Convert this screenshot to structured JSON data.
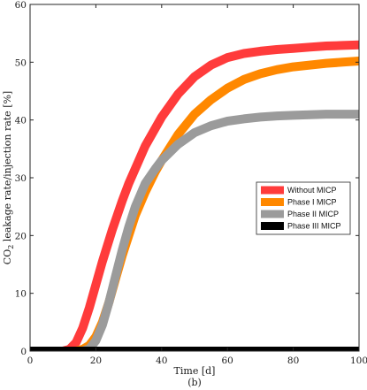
{
  "chart_data": {
    "type": "line",
    "ylabel_main": "CO",
    "ylabel_sub": "2",
    "ylabel_rest": " leakage rate/injection rate [%]",
    "xlabel": "Time [d]",
    "caption": "(b)",
    "xlim": [
      0,
      100
    ],
    "ylim": [
      0,
      60
    ],
    "xticks": [
      0,
      20,
      40,
      60,
      80,
      100
    ],
    "yticks": [
      0,
      10,
      20,
      30,
      40,
      50,
      60
    ],
    "grid": false,
    "legend_position": "center-right",
    "series": [
      {
        "name": "Without MICP",
        "color": "#ff3b3b",
        "x": [
          0,
          10,
          12,
          14,
          16,
          18,
          20,
          22,
          25,
          28,
          30,
          35,
          40,
          45,
          50,
          55,
          60,
          65,
          70,
          75,
          80,
          85,
          90,
          95,
          100
        ],
        "y": [
          0,
          0,
          0.3,
          1.5,
          4,
          7.5,
          11.5,
          15.5,
          21,
          26,
          29,
          35.5,
          40.5,
          44.5,
          47.5,
          49.5,
          50.8,
          51.5,
          51.9,
          52.2,
          52.4,
          52.6,
          52.8,
          52.9,
          53
        ]
      },
      {
        "name": "Phase I MICP",
        "color": "#ff8800",
        "x": [
          0,
          14,
          16,
          18,
          20,
          22,
          24,
          26,
          28,
          30,
          32,
          35,
          38,
          40,
          45,
          50,
          55,
          60,
          65,
          70,
          75,
          80,
          85,
          90,
          95,
          100
        ],
        "y": [
          0,
          0,
          0.3,
          1,
          2.5,
          5,
          8.5,
          12.5,
          16.5,
          20,
          23.5,
          27.5,
          31,
          33,
          37.5,
          41,
          43.5,
          45.5,
          47,
          48,
          48.7,
          49.2,
          49.5,
          49.8,
          50,
          50.2
        ]
      },
      {
        "name": "Phase II MICP",
        "color": "#9b9b9b",
        "x": [
          0,
          16,
          18,
          20,
          22,
          24,
          26,
          28,
          30,
          32,
          35,
          38,
          40,
          45,
          50,
          55,
          60,
          65,
          70,
          75,
          80,
          85,
          90,
          95,
          100
        ],
        "y": [
          0,
          0,
          0.4,
          1.8,
          4.5,
          8.5,
          13,
          17.5,
          21.5,
          25,
          29,
          31.5,
          33,
          35.8,
          37.8,
          39,
          39.8,
          40.2,
          40.5,
          40.7,
          40.8,
          40.9,
          41,
          41,
          41
        ]
      },
      {
        "name": "Phase III MICP",
        "color": "#000000",
        "x": [
          0,
          100
        ],
        "y": [
          0,
          0
        ]
      }
    ]
  }
}
